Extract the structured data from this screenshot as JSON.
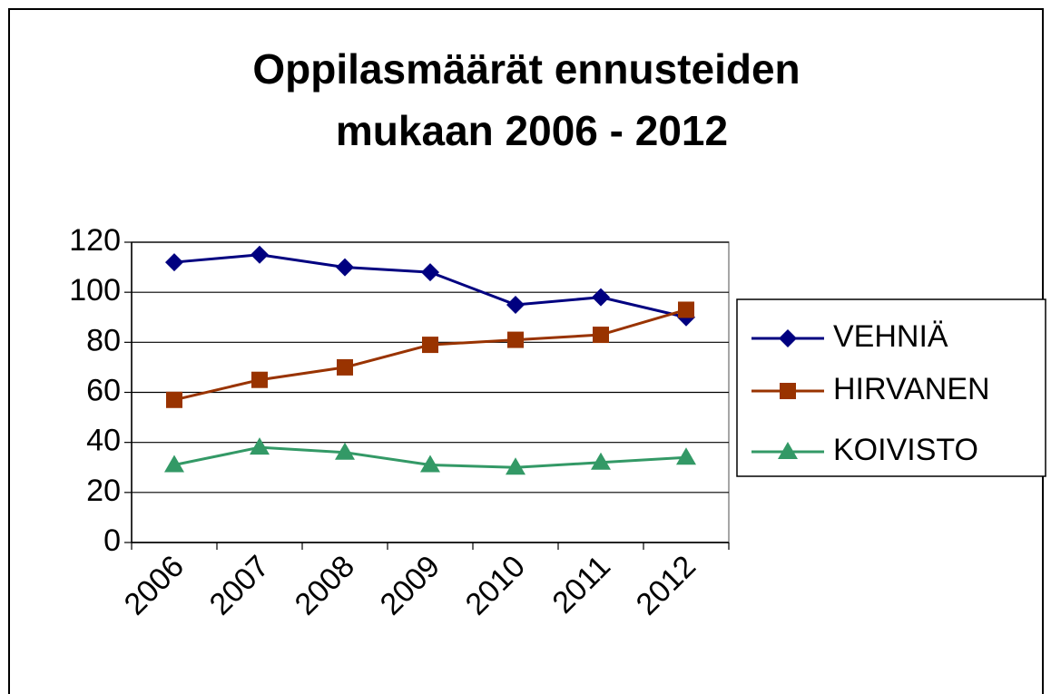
{
  "chart_data": {
    "type": "line",
    "title": [
      "Oppilasmäärät ennusteiden",
      "mukaan 2006 - 2012"
    ],
    "categories": [
      "2006",
      "2007",
      "2008",
      "2009",
      "2010",
      "2011",
      "2012"
    ],
    "series": [
      {
        "name": "VEHNIÄ",
        "color": "#000080",
        "values": [
          112,
          115,
          110,
          108,
          95,
          98,
          90
        ]
      },
      {
        "name": "HIRVANEN",
        "color": "#993300",
        "values": [
          57,
          65,
          70,
          79,
          81,
          83,
          93
        ]
      },
      {
        "name": "KOIVISTO",
        "color": "#339966",
        "values": [
          31,
          38,
          36,
          31,
          30,
          32,
          34
        ]
      }
    ],
    "ylim": [
      0,
      120
    ],
    "yticks": [
      0,
      20,
      40,
      60,
      80,
      100,
      120
    ],
    "grid": true,
    "legend": "right"
  }
}
